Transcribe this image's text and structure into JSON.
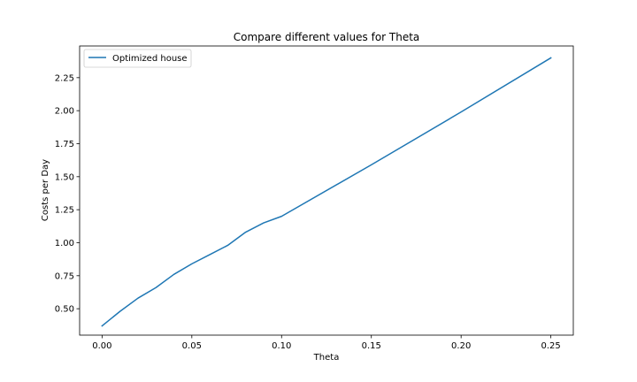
{
  "chart_data": {
    "type": "line",
    "title": "Compare different values for Theta",
    "xlabel": "Theta",
    "ylabel": "Costs per Day",
    "xlim": [
      -0.0125,
      0.2625
    ],
    "ylim": [
      0.3,
      2.49
    ],
    "x_ticks": [
      0.0,
      0.05,
      0.1,
      0.15,
      0.2,
      0.25
    ],
    "x_tick_labels": [
      "0.00",
      "0.05",
      "0.10",
      "0.15",
      "0.20",
      "0.25"
    ],
    "y_ticks": [
      0.5,
      0.75,
      1.0,
      1.25,
      1.5,
      1.75,
      2.0,
      2.25
    ],
    "y_tick_labels": [
      "0.50",
      "0.75",
      "1.00",
      "1.25",
      "1.50",
      "1.75",
      "2.00",
      "2.25"
    ],
    "grid": false,
    "legend_position": "top-left",
    "series": [
      {
        "name": "Optimized house",
        "color": "#1f77b4",
        "x": [
          0.0,
          0.01,
          0.02,
          0.03,
          0.04,
          0.05,
          0.06,
          0.07,
          0.08,
          0.09,
          0.1,
          0.15,
          0.2,
          0.25
        ],
        "y": [
          0.37,
          0.48,
          0.58,
          0.66,
          0.76,
          0.84,
          0.91,
          0.98,
          1.08,
          1.15,
          1.2,
          1.59,
          1.99,
          2.4
        ]
      }
    ]
  }
}
